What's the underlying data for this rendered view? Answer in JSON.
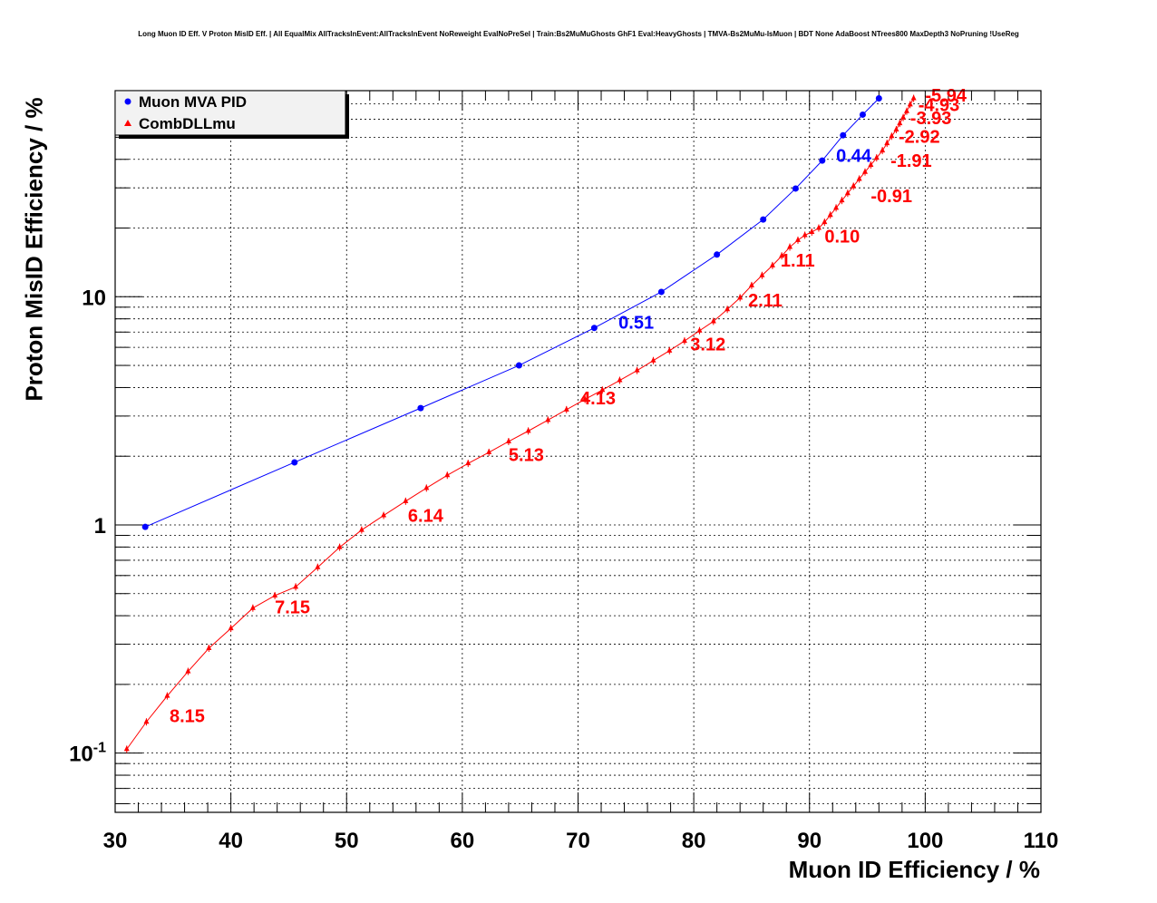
{
  "chart_data": {
    "type": "line",
    "title": "Long Muon ID Eff. V Proton MisID Eff. | All EqualMix AllTracksInEvent:AllTracksInEvent NoReweight EvalNoPreSel | Train:Bs2MuMuGhosts GhF1 Eval:HeavyGhosts | TMVA-Bs2MuMu-IsMuon | BDT None AdaBoost NTrees800 MaxDepth3 NoPruning !UseReg",
    "xlabel": "Muon ID Efficiency / %",
    "ylabel": "Proton MisID Efficiency / %",
    "xlim": [
      30,
      110
    ],
    "ylim": [
      0.055,
      80
    ],
    "yscale": "log",
    "grid": true,
    "legend_position": "top-left",
    "x_ticks": [
      "30",
      "40",
      "50",
      "60",
      "70",
      "80",
      "90",
      "100",
      "110"
    ],
    "y_ticks": [
      {
        "value": 0.1,
        "base": "10",
        "exp": "-1"
      },
      {
        "value": 1,
        "base": "1",
        "exp": ""
      },
      {
        "value": 10,
        "base": "10",
        "exp": ""
      }
    ],
    "series": [
      {
        "name": "Muon MVA PID",
        "color": "#0000ff",
        "marker": "circle",
        "x": [
          32.6,
          45.5,
          56.4,
          64.9,
          71.4,
          77.2,
          82.0,
          86.0,
          88.8,
          91.1,
          92.9,
          94.6,
          96.0
        ],
        "y": [
          0.98,
          1.88,
          3.25,
          5.0,
          7.3,
          10.5,
          15.3,
          21.8,
          29.8,
          39.5,
          51.0,
          62.8,
          74.0
        ]
      },
      {
        "name": "CombDLLmu",
        "color": "#ff0000",
        "marker": "triangle",
        "x": [
          31.0,
          32.7,
          34.5,
          36.3,
          38.1,
          40.0,
          41.9,
          43.8,
          45.6,
          47.5,
          49.4,
          51.3,
          53.2,
          55.1,
          56.9,
          58.7,
          60.5,
          62.3,
          64.0,
          65.7,
          67.4,
          69.0,
          70.6,
          72.1,
          73.6,
          75.1,
          76.5,
          77.9,
          79.2,
          80.5,
          81.7,
          82.9,
          84.0,
          85.0,
          85.9,
          86.8,
          87.6,
          88.3,
          89.0,
          89.6,
          90.2,
          90.8,
          91.3,
          91.8,
          92.3,
          92.8,
          93.3,
          93.8,
          94.3,
          94.8,
          95.3,
          95.8,
          96.3,
          96.7,
          97.1,
          97.5,
          97.8,
          98.1,
          98.4,
          98.7,
          99.0
        ],
        "y": [
          0.104,
          0.137,
          0.178,
          0.228,
          0.288,
          0.352,
          0.432,
          0.49,
          0.535,
          0.652,
          0.798,
          0.95,
          1.1,
          1.27,
          1.45,
          1.65,
          1.86,
          2.08,
          2.32,
          2.58,
          2.88,
          3.2,
          3.55,
          3.9,
          4.3,
          4.75,
          5.25,
          5.8,
          6.4,
          7.1,
          7.8,
          8.8,
          9.9,
          11.2,
          12.4,
          13.7,
          15.1,
          16.5,
          17.7,
          18.6,
          19.2,
          20.0,
          21.2,
          22.8,
          24.5,
          26.4,
          28.4,
          30.5,
          32.8,
          35.2,
          37.8,
          40.6,
          43.7,
          47.0,
          50.5,
          54.0,
          57.5,
          61.0,
          65.0,
          69.5,
          74.0
        ]
      }
    ],
    "annotations": [
      {
        "text": "0.51",
        "x": 73.5,
        "y": 7.8,
        "color": "#0000ff"
      },
      {
        "text": "0.44",
        "x": 92.3,
        "y": 42.0,
        "color": "#0000ff"
      },
      {
        "text": "8.15",
        "x": 34.7,
        "y": 0.147,
        "color": "#ff0000"
      },
      {
        "text": "7.15",
        "x": 43.8,
        "y": 0.44,
        "color": "#ff0000"
      },
      {
        "text": "6.14",
        "x": 55.3,
        "y": 1.11,
        "color": "#ff0000"
      },
      {
        "text": "5.13",
        "x": 64.0,
        "y": 2.05,
        "color": "#ff0000"
      },
      {
        "text": "4.13",
        "x": 70.2,
        "y": 3.63,
        "color": "#ff0000"
      },
      {
        "text": "3.12",
        "x": 79.7,
        "y": 6.25,
        "color": "#ff0000"
      },
      {
        "text": "2.11",
        "x": 84.7,
        "y": 9.75,
        "color": "#ff0000"
      },
      {
        "text": "1.11",
        "x": 87.5,
        "y": 14.6,
        "color": "#ff0000"
      },
      {
        "text": "0.10",
        "x": 91.3,
        "y": 18.6,
        "color": "#ff0000"
      },
      {
        "text": "-0.91",
        "x": 95.3,
        "y": 27.9,
        "color": "#ff0000"
      },
      {
        "text": "-1.91",
        "x": 97.0,
        "y": 40.0,
        "color": "#ff0000"
      },
      {
        "text": "-2.92",
        "x": 97.7,
        "y": 50.8,
        "color": "#ff0000"
      },
      {
        "text": "-3.93",
        "x": 98.7,
        "y": 61.3,
        "color": "#ff0000"
      },
      {
        "text": "-4.93",
        "x": 99.4,
        "y": 70.0,
        "color": "#ff0000"
      },
      {
        "text": "-5.94",
        "x": 100.0,
        "y": 77.0,
        "color": "#ff0000"
      }
    ]
  }
}
